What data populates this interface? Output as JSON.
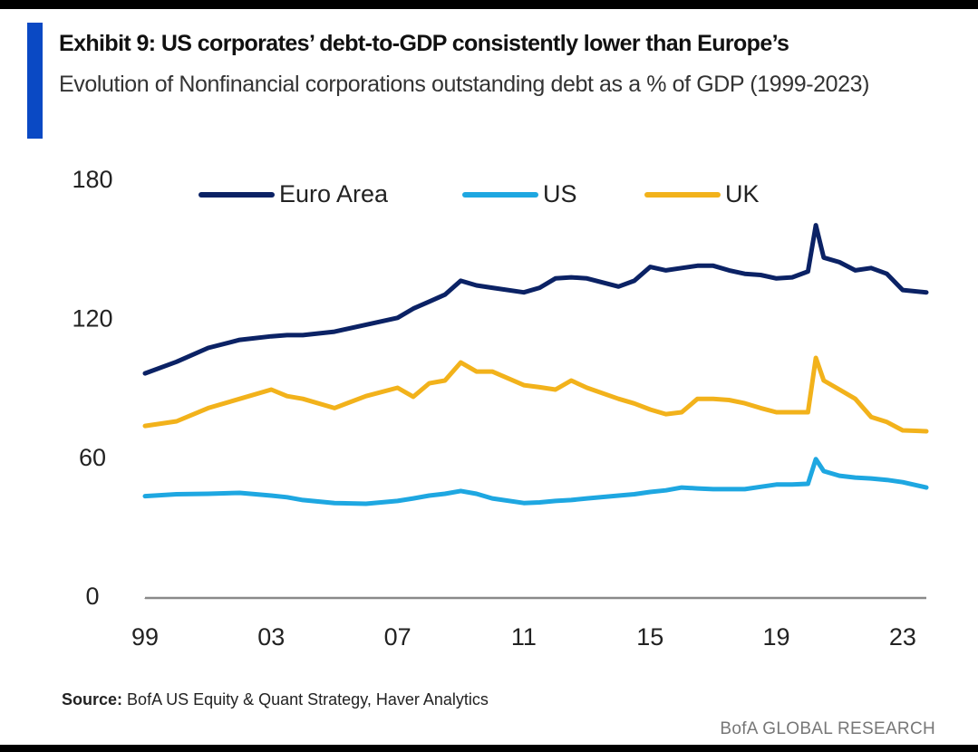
{
  "chart_data": {
    "type": "line",
    "title": "Exhibit 9: US corporates’ debt-to-GDP consistently lower than Europe’s",
    "subtitle": "Evolution of Nonfinancial corporations outstanding debt as a % of GDP (1999-2023)",
    "source_label": "Source:",
    "source": "BofA US Equity & Quant Strategy, Haver Analytics",
    "footer": "BofA GLOBAL RESEARCH",
    "x": [
      1999,
      2000,
      2001,
      2002,
      2003,
      2003.5,
      2004,
      2005,
      2006,
      2007,
      2007.5,
      2008,
      2008.5,
      2009,
      2009.5,
      2010,
      2011,
      2011.5,
      2012,
      2012.5,
      2013,
      2014,
      2014.5,
      2015,
      2015.5,
      2016,
      2016.5,
      2017,
      2017.5,
      2018,
      2018.5,
      2019,
      2019.5,
      2020,
      2020.25,
      2020.5,
      2021,
      2021.5,
      2022,
      2022.5,
      2023,
      2023.75
    ],
    "series": [
      {
        "name": "Euro Area",
        "color": "#0b2265",
        "values": [
          97,
          102,
          108,
          111.5,
          113,
          113.5,
          113.5,
          115,
          118,
          121,
          125,
          128,
          131,
          137,
          135,
          134,
          132,
          134,
          138,
          138.5,
          138,
          134.5,
          137,
          143,
          141.5,
          142.5,
          143.5,
          143.5,
          141.5,
          140,
          139.5,
          138,
          138.5,
          141,
          161,
          147,
          145,
          141.5,
          142.5,
          140,
          133,
          132
        ]
      },
      {
        "name": "US",
        "color": "#1ea7e1",
        "values": [
          44,
          44.8,
          45,
          45.4,
          44.2,
          43.5,
          42.3,
          41,
          40.7,
          41.9,
          43,
          44.2,
          45,
          46.2,
          45,
          43,
          41,
          41.3,
          41.9,
          42.3,
          43,
          44.2,
          44.8,
          45.8,
          46.5,
          47.7,
          47.3,
          47,
          47,
          47,
          48,
          49,
          49,
          49.3,
          60,
          54.8,
          52.8,
          52,
          51.6,
          51,
          50,
          47.7
        ]
      },
      {
        "name": "UK",
        "color": "#f2b21b",
        "values": [
          74.3,
          76.3,
          82,
          86,
          90,
          87.2,
          86,
          82,
          87.2,
          90.8,
          86.9,
          92.7,
          93.9,
          101.7,
          97.8,
          97.8,
          91.9,
          91,
          90,
          93.9,
          90.8,
          86,
          84,
          81.4,
          79.4,
          80.2,
          86,
          86,
          85.5,
          84.1,
          82,
          80.2,
          80.2,
          80.2,
          103.7,
          93.9,
          90,
          86,
          78.2,
          76,
          72.4,
          72
        ]
      }
    ],
    "xlim": [
      1999,
      2023.75
    ],
    "xticks": [
      {
        "value": 1999,
        "label": "99"
      },
      {
        "value": 2003,
        "label": "03"
      },
      {
        "value": 2007,
        "label": "07"
      },
      {
        "value": 2011,
        "label": "11"
      },
      {
        "value": 2015,
        "label": "15"
      },
      {
        "value": 2019,
        "label": "19"
      },
      {
        "value": 2023,
        "label": "23"
      }
    ],
    "ylim": [
      0,
      180
    ],
    "yticks": [
      0,
      60,
      120,
      180
    ],
    "grid": false,
    "legend": "top"
  }
}
